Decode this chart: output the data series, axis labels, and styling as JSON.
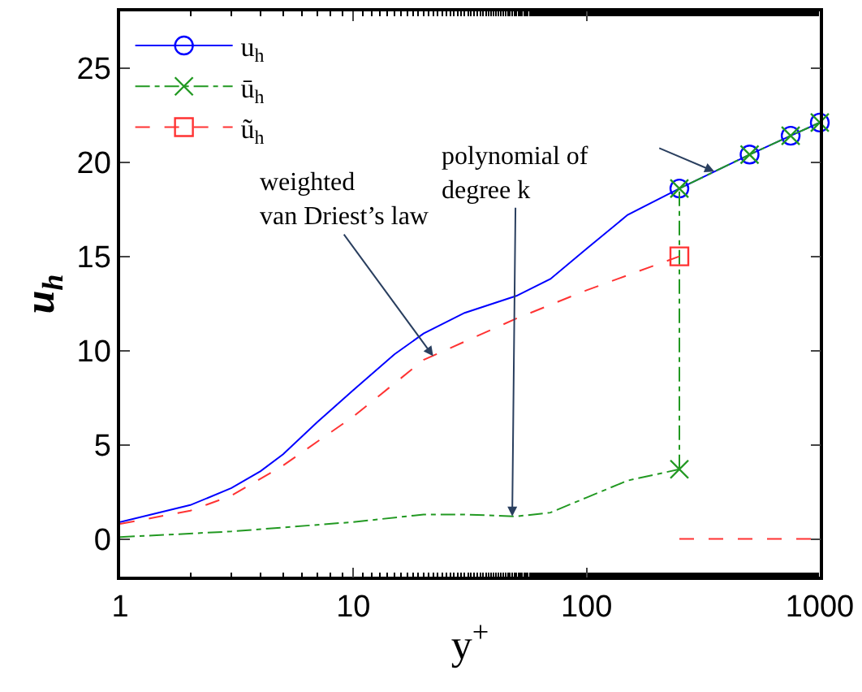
{
  "chart_data": {
    "type": "line",
    "xlabel": "y$^{+}$",
    "ylabel": "u$_{h}$",
    "log": "x",
    "xlim": [
      1,
      1000
    ],
    "xticks": [
      1,
      10,
      100,
      1000
    ],
    "ylim": [
      -2,
      28
    ],
    "yticks": [
      0,
      5,
      10,
      15,
      20,
      25
    ],
    "legend": "top left",
    "series": [
      {
        "color": "#0000ff",
        "marker": "none",
        "line_style": "solid",
        "x": [
          1,
          2,
          3,
          4,
          5,
          7,
          10,
          15,
          20,
          30,
          50,
          70,
          100,
          150,
          250
        ],
        "values": [
          0.9,
          1.8,
          2.7,
          3.6,
          4.5,
          6.2,
          7.9,
          9.8,
          10.9,
          12.0,
          12.9,
          13.8,
          15.4,
          17.2,
          18.6
        ]
      },
      {
        "name": "u$_{h}$",
        "color": "#0000ff",
        "marker": "circle",
        "line_style": "solid",
        "x": [
          250,
          500,
          750,
          1000
        ],
        "values": [
          18.6,
          20.4,
          21.4,
          22.1
        ]
      },
      {
        "color": "#229922",
        "marker": "none",
        "line_style": "dashdot",
        "x": [
          1,
          3,
          10,
          20,
          30,
          50,
          70,
          100,
          150,
          250
        ],
        "values": [
          0.1,
          0.4,
          0.9,
          1.3,
          1.3,
          1.2,
          1.4,
          2.2,
          3.1,
          3.7
        ]
      },
      {
        "name": "ū$_{h}$",
        "color": "#229922",
        "marker": "cross",
        "line_style": "dashdot",
        "x": [
          250,
          250,
          500,
          750,
          1000
        ],
        "values": [
          3.7,
          18.6,
          20.4,
          21.4,
          22.1
        ]
      },
      {
        "color": "#ff3333",
        "marker": "none",
        "line_style": "dashed",
        "x": [
          1,
          2,
          3,
          5,
          10,
          20,
          50,
          100,
          250,
          null,
          250,
          1000
        ],
        "values": [
          0.8,
          1.5,
          2.3,
          3.9,
          6.5,
          9.5,
          11.7,
          13.2,
          15.0,
          null,
          0,
          0
        ]
      },
      {
        "name": "ũ$_{h}$",
        "color": "#ff3333",
        "marker": "square",
        "line_style": "dashed",
        "x": [
          250
        ],
        "values": [
          15.0
        ]
      }
    ],
    "annotations": [
      {
        "text": "weighted\nvan Driest’s law",
        "x": 22,
        "y": 9.7
      },
      {
        "text": "polynomial of\ndegree k",
        "x": 48,
        "y": 1.2
      }
    ]
  }
}
